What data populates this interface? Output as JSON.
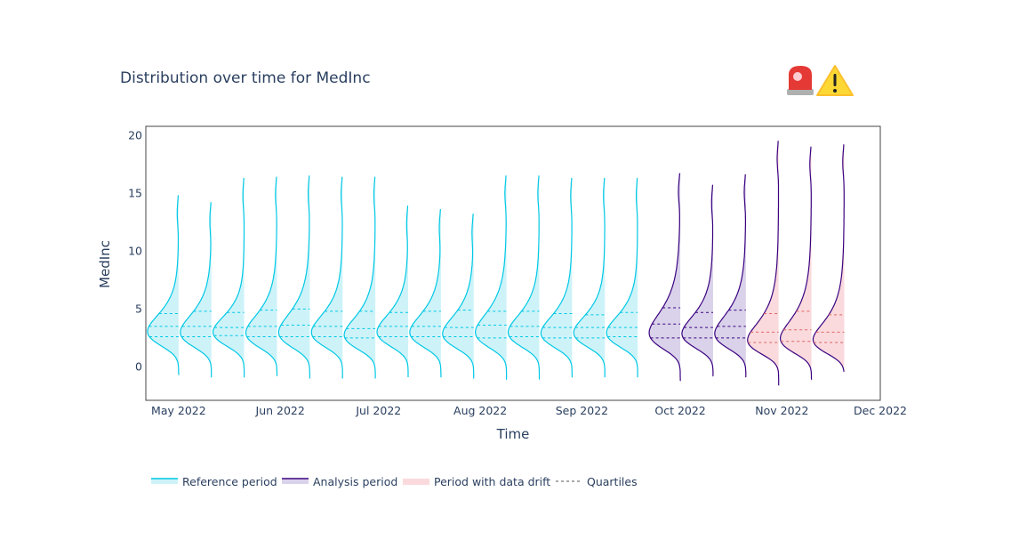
{
  "chart_data": {
    "type": "violin",
    "title": "Distribution over time for MedInc",
    "xlabel": "Time",
    "ylabel": "MedInc",
    "ylim": [
      -2.9,
      20.8
    ],
    "yticks": [
      0,
      5,
      10,
      15,
      20
    ],
    "xlim": [
      "2022-04-21",
      "2022-12-01"
    ],
    "xticks": [
      {
        "date": "2022-05-01",
        "label": "May 2022"
      },
      {
        "date": "2022-06-01",
        "label": "Jun 2022"
      },
      {
        "date": "2022-07-01",
        "label": "Jul 2022"
      },
      {
        "date": "2022-08-01",
        "label": "Aug 2022"
      },
      {
        "date": "2022-09-01",
        "label": "Sep 2022"
      },
      {
        "date": "2022-10-01",
        "label": "Oct 2022"
      },
      {
        "date": "2022-11-01",
        "label": "Nov 2022"
      },
      {
        "date": "2022-12-01",
        "label": "Dec 2022"
      }
    ],
    "grid": false,
    "legend_position": "bottom-left",
    "legend": [
      {
        "label": "Reference period",
        "kind": "reference"
      },
      {
        "label": "Analysis period",
        "kind": "analysis"
      },
      {
        "label": "Period with data drift",
        "kind": "drift"
      },
      {
        "label": "Quartiles",
        "kind": "quartiles"
      }
    ],
    "colors": {
      "reference_line": "#00c8e5",
      "reference_fill": "#cdf3f9",
      "analysis_line": "#3b0280",
      "analysis_fill": "#d9d2ea",
      "drift_fill": "#fadadd",
      "drift_quartile": "#e06666"
    },
    "violins": [
      {
        "date": "2022-05-01",
        "period": "reference",
        "drift": false,
        "min": -0.7,
        "q1": 2.6,
        "median": 3.5,
        "q3": 4.6,
        "max": 14.8
      },
      {
        "date": "2022-05-11",
        "period": "reference",
        "drift": false,
        "min": -0.9,
        "q1": 2.6,
        "median": 3.5,
        "q3": 4.8,
        "max": 14.2
      },
      {
        "date": "2022-05-21",
        "period": "reference",
        "drift": false,
        "min": -0.9,
        "q1": 2.7,
        "median": 3.4,
        "q3": 4.7,
        "max": 16.3
      },
      {
        "date": "2022-05-31",
        "period": "reference",
        "drift": false,
        "min": -0.8,
        "q1": 2.6,
        "median": 3.5,
        "q3": 4.9,
        "max": 16.4
      },
      {
        "date": "2022-06-10",
        "period": "reference",
        "drift": false,
        "min": -1.0,
        "q1": 2.6,
        "median": 3.6,
        "q3": 5.0,
        "max": 16.5
      },
      {
        "date": "2022-06-20",
        "period": "reference",
        "drift": false,
        "min": -1.0,
        "q1": 2.6,
        "median": 3.5,
        "q3": 4.8,
        "max": 16.4
      },
      {
        "date": "2022-06-30",
        "period": "reference",
        "drift": false,
        "min": -1.0,
        "q1": 2.5,
        "median": 3.3,
        "q3": 4.8,
        "max": 16.4
      },
      {
        "date": "2022-07-10",
        "period": "reference",
        "drift": false,
        "min": -0.9,
        "q1": 2.6,
        "median": 3.5,
        "q3": 4.7,
        "max": 13.9
      },
      {
        "date": "2022-07-20",
        "period": "reference",
        "drift": false,
        "min": -0.9,
        "q1": 2.6,
        "median": 3.5,
        "q3": 4.8,
        "max": 13.6
      },
      {
        "date": "2022-07-30",
        "period": "reference",
        "drift": false,
        "min": -1.0,
        "q1": 2.6,
        "median": 3.4,
        "q3": 4.9,
        "max": 13.2
      },
      {
        "date": "2022-08-09",
        "period": "reference",
        "drift": false,
        "min": -1.1,
        "q1": 2.5,
        "median": 3.6,
        "q3": 4.8,
        "max": 16.5
      },
      {
        "date": "2022-08-19",
        "period": "reference",
        "drift": false,
        "min": -1.1,
        "q1": 2.6,
        "median": 3.5,
        "q3": 4.8,
        "max": 16.5
      },
      {
        "date": "2022-08-29",
        "period": "reference",
        "drift": false,
        "min": -0.9,
        "q1": 2.5,
        "median": 3.4,
        "q3": 4.6,
        "max": 16.3
      },
      {
        "date": "2022-09-08",
        "period": "reference",
        "drift": false,
        "min": -0.9,
        "q1": 2.5,
        "median": 3.4,
        "q3": 4.5,
        "max": 16.3
      },
      {
        "date": "2022-09-18",
        "period": "reference",
        "drift": false,
        "min": -0.9,
        "q1": 2.6,
        "median": 3.4,
        "q3": 4.7,
        "max": 16.3
      },
      {
        "date": "2022-10-01",
        "period": "analysis",
        "drift": false,
        "min": -1.2,
        "q1": 2.5,
        "median": 3.7,
        "q3": 5.1,
        "max": 16.7
      },
      {
        "date": "2022-10-11",
        "period": "analysis",
        "drift": false,
        "min": -0.8,
        "q1": 2.5,
        "median": 3.4,
        "q3": 4.7,
        "max": 15.7
      },
      {
        "date": "2022-10-21",
        "period": "analysis",
        "drift": false,
        "min": -0.9,
        "q1": 2.5,
        "median": 3.5,
        "q3": 4.9,
        "max": 16.6
      },
      {
        "date": "2022-10-31",
        "period": "analysis",
        "drift": true,
        "min": -1.6,
        "q1": 2.1,
        "median": 3.0,
        "q3": 4.6,
        "max": 19.5
      },
      {
        "date": "2022-11-10",
        "period": "analysis",
        "drift": true,
        "min": -1.1,
        "q1": 2.2,
        "median": 3.2,
        "q3": 4.8,
        "max": 19.0
      },
      {
        "date": "2022-11-20",
        "period": "analysis",
        "drift": true,
        "min": -0.4,
        "q1": 2.1,
        "median": 3.0,
        "q3": 4.5,
        "max": 19.2
      }
    ]
  },
  "alert_icons": [
    "police-car-light-icon",
    "warning-icon"
  ]
}
